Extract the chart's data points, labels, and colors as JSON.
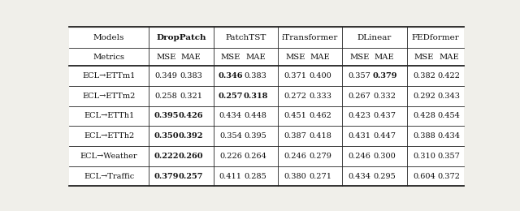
{
  "header1": [
    "Models",
    "DropPatch",
    "PatchTST",
    "iTransformer",
    "DLinear",
    "FEDformer"
  ],
  "rows": [
    {
      "task": "ECL→ETTm1",
      "data": [
        {
          "mse": "0.349",
          "mae": "0.383",
          "mse_bold": false,
          "mae_bold": false
        },
        {
          "mse": "0.346",
          "mae": "0.383",
          "mse_bold": true,
          "mae_bold": false
        },
        {
          "mse": "0.371",
          "mae": "0.400",
          "mse_bold": false,
          "mae_bold": false
        },
        {
          "mse": "0.357",
          "mae": "0.379",
          "mse_bold": false,
          "mae_bold": true
        },
        {
          "mse": "0.382",
          "mae": "0.422",
          "mse_bold": false,
          "mae_bold": false
        }
      ]
    },
    {
      "task": "ECL→ETTm2",
      "data": [
        {
          "mse": "0.258",
          "mae": "0.321",
          "mse_bold": false,
          "mae_bold": false
        },
        {
          "mse": "0.257",
          "mae": "0.318",
          "mse_bold": true,
          "mae_bold": true
        },
        {
          "mse": "0.272",
          "mae": "0.333",
          "mse_bold": false,
          "mae_bold": false
        },
        {
          "mse": "0.267",
          "mae": "0.332",
          "mse_bold": false,
          "mae_bold": false
        },
        {
          "mse": "0.292",
          "mae": "0.343",
          "mse_bold": false,
          "mae_bold": false
        }
      ]
    },
    {
      "task": "ECL→ETTh1",
      "data": [
        {
          "mse": "0.395",
          "mae": "0.426",
          "mse_bold": true,
          "mae_bold": true
        },
        {
          "mse": "0.434",
          "mae": "0.448",
          "mse_bold": false,
          "mae_bold": false
        },
        {
          "mse": "0.451",
          "mae": "0.462",
          "mse_bold": false,
          "mae_bold": false
        },
        {
          "mse": "0.423",
          "mae": "0.437",
          "mse_bold": false,
          "mae_bold": false
        },
        {
          "mse": "0.428",
          "mae": "0.454",
          "mse_bold": false,
          "mae_bold": false
        }
      ]
    },
    {
      "task": "ECL→ETTh2",
      "data": [
        {
          "mse": "0.350",
          "mae": "0.392",
          "mse_bold": true,
          "mae_bold": true
        },
        {
          "mse": "0.354",
          "mae": "0.395",
          "mse_bold": false,
          "mae_bold": false
        },
        {
          "mse": "0.387",
          "mae": "0.418",
          "mse_bold": false,
          "mae_bold": false
        },
        {
          "mse": "0.431",
          "mae": "0.447",
          "mse_bold": false,
          "mae_bold": false
        },
        {
          "mse": "0.388",
          "mae": "0.434",
          "mse_bold": false,
          "mae_bold": false
        }
      ]
    },
    {
      "task": "ECL→Weather",
      "data": [
        {
          "mse": "0.222",
          "mae": "0.260",
          "mse_bold": true,
          "mae_bold": true
        },
        {
          "mse": "0.226",
          "mae": "0.264",
          "mse_bold": false,
          "mae_bold": false
        },
        {
          "mse": "0.246",
          "mae": "0.279",
          "mse_bold": false,
          "mae_bold": false
        },
        {
          "mse": "0.246",
          "mae": "0.300",
          "mse_bold": false,
          "mae_bold": false
        },
        {
          "mse": "0.310",
          "mae": "0.357",
          "mse_bold": false,
          "mae_bold": false
        }
      ]
    },
    {
      "task": "ECL→Traffic",
      "data": [
        {
          "mse": "0.379",
          "mae": "0.257",
          "mse_bold": true,
          "mae_bold": true
        },
        {
          "mse": "0.411",
          "mae": "0.285",
          "mse_bold": false,
          "mae_bold": false
        },
        {
          "mse": "0.380",
          "mae": "0.271",
          "mse_bold": false,
          "mae_bold": false
        },
        {
          "mse": "0.434",
          "mae": "0.295",
          "mse_bold": false,
          "mae_bold": false
        },
        {
          "mse": "0.604",
          "mae": "0.372",
          "mse_bold": false,
          "mae_bold": false
        }
      ]
    }
  ],
  "bg_color": "#f0efea",
  "table_bg": "#ffffff",
  "border_color": "#222222",
  "text_color": "#111111",
  "vline_positions": [
    0.208,
    0.368,
    0.528,
    0.688,
    0.848
  ],
  "group_mse_offsets": [
    0.038,
    0.038,
    0.038,
    0.038,
    0.038
  ],
  "group_mae_offsets": [
    0.1,
    0.1,
    0.1,
    0.1,
    0.1
  ],
  "group_starts": [
    0.213,
    0.373,
    0.533,
    0.693,
    0.853
  ],
  "fs_header1": 7.5,
  "fs_header2": 7.2,
  "fs_data": 7.0,
  "lw_thick": 1.3,
  "lw_thin": 0.6
}
